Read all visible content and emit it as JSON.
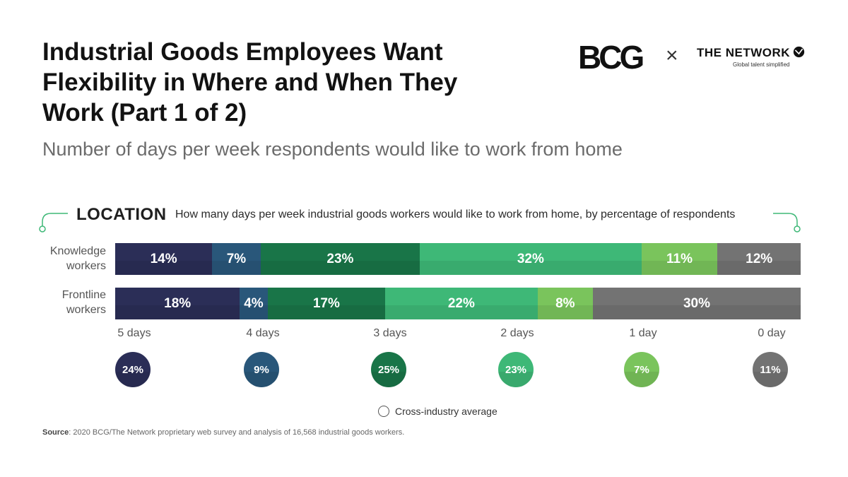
{
  "title": "Industrial Goods Employees Want Flexibility in Where and When They Work (Part 1 of 2)",
  "subtitle": "Number of days per week respondents would like to work from home",
  "logos": {
    "bcg": "BCG",
    "separator": "×",
    "network": "THE NETWORK",
    "network_tagline": "Global talent simplified",
    "network_icon": "network-globe-icon"
  },
  "section": {
    "heading": "LOCATION",
    "description": "How many days per week industrial goods workers would like to work from home, by percentage of respondents"
  },
  "colors": {
    "5 days": "#2b2e57",
    "4 days": "#29577a",
    "3 days": "#197548",
    "2 days": "#3eb877",
    "1 day": "#7ac45c",
    "0 day": "#737373",
    "accent": "#3eb877"
  },
  "chart_data": {
    "type": "bar",
    "orientation": "horizontal",
    "stacked": true,
    "categories": [
      "Knowledge workers",
      "Frontline workers"
    ],
    "category_lines": [
      [
        "Knowledge",
        "workers"
      ],
      [
        "Frontline",
        "workers"
      ]
    ],
    "series": [
      {
        "name": "5 days",
        "values": [
          14,
          18
        ],
        "labels": [
          "14%",
          "18%"
        ],
        "average": "24%"
      },
      {
        "name": "4 days",
        "values": [
          7,
          4
        ],
        "labels": [
          "7%",
          "4%"
        ],
        "average": "9%"
      },
      {
        "name": "3 days",
        "values": [
          23,
          17
        ],
        "labels": [
          "23%",
          "17%"
        ],
        "average": "25%"
      },
      {
        "name": "2 days",
        "values": [
          32,
          22
        ],
        "labels": [
          "32%",
          "22%"
        ],
        "average": "23%"
      },
      {
        "name": "1 day",
        "values": [
          11,
          8
        ],
        "labels": [
          "11%",
          "8%"
        ],
        "average": "7%"
      },
      {
        "name": "0 day",
        "values": [
          12,
          30
        ],
        "labels": [
          "12%",
          "30%"
        ],
        "average": "11%"
      }
    ],
    "unit": "%",
    "legend": "Cross-industry average"
  },
  "source": {
    "label": "Source",
    "text": ": 2020 BCG/The Network proprietary web survey and analysis of 16,568 industrial goods workers."
  }
}
